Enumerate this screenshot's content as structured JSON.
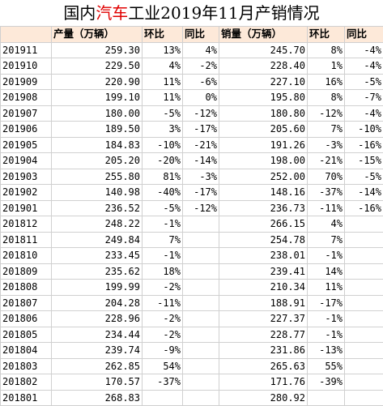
{
  "title": {
    "pre": "国内",
    "highlight": "汽车",
    "post": "工业2019年11月产销情况",
    "highlight_color": "#e00000"
  },
  "header": {
    "period": "",
    "production": "产量（万辆）",
    "prod_mom": "环比",
    "prod_yoy": "同比",
    "sales": "销量（万辆）",
    "sales_mom": "环比",
    "sales_yoy": "同比",
    "background": "#fde9d9"
  },
  "rows": [
    {
      "period": "201911",
      "production": "259.30",
      "prod_mom": "13%",
      "prod_yoy": "4%",
      "sales": "245.70",
      "sales_mom": "8%",
      "sales_yoy": "-4%"
    },
    {
      "period": "201910",
      "production": "229.50",
      "prod_mom": "4%",
      "prod_yoy": "-2%",
      "sales": "228.40",
      "sales_mom": "1%",
      "sales_yoy": "-4%"
    },
    {
      "period": "201909",
      "production": "220.90",
      "prod_mom": "11%",
      "prod_yoy": "-6%",
      "sales": "227.10",
      "sales_mom": "16%",
      "sales_yoy": "-5%"
    },
    {
      "period": "201908",
      "production": "199.10",
      "prod_mom": "11%",
      "prod_yoy": "0%",
      "sales": "195.80",
      "sales_mom": "8%",
      "sales_yoy": "-7%"
    },
    {
      "period": "201907",
      "production": "180.00",
      "prod_mom": "-5%",
      "prod_yoy": "-12%",
      "sales": "180.80",
      "sales_mom": "-12%",
      "sales_yoy": "-4%"
    },
    {
      "period": "201906",
      "production": "189.50",
      "prod_mom": "3%",
      "prod_yoy": "-17%",
      "sales": "205.60",
      "sales_mom": "7%",
      "sales_yoy": "-10%"
    },
    {
      "period": "201905",
      "production": "184.83",
      "prod_mom": "-10%",
      "prod_yoy": "-21%",
      "sales": "191.26",
      "sales_mom": "-3%",
      "sales_yoy": "-16%"
    },
    {
      "period": "201904",
      "production": "205.20",
      "prod_mom": "-20%",
      "prod_yoy": "-14%",
      "sales": "198.00",
      "sales_mom": "-21%",
      "sales_yoy": "-15%"
    },
    {
      "period": "201903",
      "production": "255.80",
      "prod_mom": "81%",
      "prod_yoy": "-3%",
      "sales": "252.00",
      "sales_mom": "70%",
      "sales_yoy": "-5%"
    },
    {
      "period": "201902",
      "production": "140.98",
      "prod_mom": "-40%",
      "prod_yoy": "-17%",
      "sales": "148.16",
      "sales_mom": "-37%",
      "sales_yoy": "-14%"
    },
    {
      "period": "201901",
      "production": "236.52",
      "prod_mom": "-5%",
      "prod_yoy": "-12%",
      "sales": "236.73",
      "sales_mom": "-11%",
      "sales_yoy": "-16%"
    },
    {
      "period": "201812",
      "production": "248.22",
      "prod_mom": "-1%",
      "prod_yoy": "",
      "sales": "266.15",
      "sales_mom": "4%",
      "sales_yoy": ""
    },
    {
      "period": "201811",
      "production": "249.84",
      "prod_mom": "7%",
      "prod_yoy": "",
      "sales": "254.78",
      "sales_mom": "7%",
      "sales_yoy": ""
    },
    {
      "period": "201810",
      "production": "233.45",
      "prod_mom": "-1%",
      "prod_yoy": "",
      "sales": "238.01",
      "sales_mom": "-1%",
      "sales_yoy": ""
    },
    {
      "period": "201809",
      "production": "235.62",
      "prod_mom": "18%",
      "prod_yoy": "",
      "sales": "239.41",
      "sales_mom": "14%",
      "sales_yoy": ""
    },
    {
      "period": "201808",
      "production": "199.99",
      "prod_mom": "-2%",
      "prod_yoy": "",
      "sales": "210.34",
      "sales_mom": "11%",
      "sales_yoy": ""
    },
    {
      "period": "201807",
      "production": "204.28",
      "prod_mom": "-11%",
      "prod_yoy": "",
      "sales": "188.91",
      "sales_mom": "-17%",
      "sales_yoy": ""
    },
    {
      "period": "201806",
      "production": "228.96",
      "prod_mom": "-2%",
      "prod_yoy": "",
      "sales": "227.37",
      "sales_mom": "-1%",
      "sales_yoy": ""
    },
    {
      "period": "201805",
      "production": "234.44",
      "prod_mom": "-2%",
      "prod_yoy": "",
      "sales": "228.77",
      "sales_mom": "-1%",
      "sales_yoy": ""
    },
    {
      "period": "201804",
      "production": "239.74",
      "prod_mom": "-9%",
      "prod_yoy": "",
      "sales": "231.86",
      "sales_mom": "-13%",
      "sales_yoy": ""
    },
    {
      "period": "201803",
      "production": "262.85",
      "prod_mom": "54%",
      "prod_yoy": "",
      "sales": "265.63",
      "sales_mom": "55%",
      "sales_yoy": ""
    },
    {
      "period": "201802",
      "production": "170.57",
      "prod_mom": "-37%",
      "prod_yoy": "",
      "sales": "171.76",
      "sales_mom": "-39%",
      "sales_yoy": ""
    },
    {
      "period": "201801",
      "production": "268.83",
      "prod_mom": "",
      "prod_yoy": "",
      "sales": "280.92",
      "sales_mom": "",
      "sales_yoy": ""
    }
  ]
}
